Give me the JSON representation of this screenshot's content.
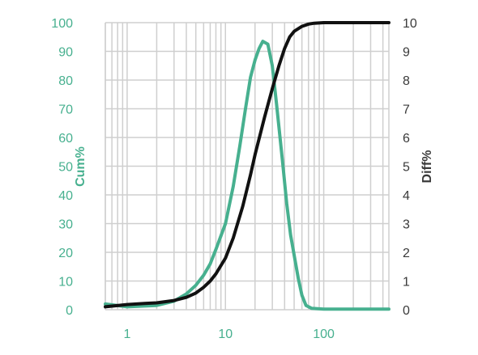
{
  "chart_data": {
    "type": "line",
    "title": "",
    "x_axis": {
      "label": "",
      "scale": "log",
      "range": [
        0.6,
        460
      ],
      "tick_values": [
        1,
        10,
        100
      ],
      "tick_labels": [
        "1",
        "10",
        "100"
      ]
    },
    "y_left": {
      "label": "Cum%",
      "range": [
        0,
        100
      ],
      "tick_values": [
        0,
        10,
        20,
        30,
        40,
        50,
        60,
        70,
        80,
        90,
        100
      ],
      "tick_labels": [
        "0",
        "10",
        "20",
        "30",
        "40",
        "50",
        "60",
        "70",
        "80",
        "90",
        "100"
      ],
      "color": "#47b08f"
    },
    "y_right": {
      "label": "Diff%",
      "range": [
        0,
        10
      ],
      "tick_values": [
        0,
        1,
        2,
        3,
        4,
        5,
        6,
        7,
        8,
        9,
        10
      ],
      "tick_labels": [
        "0",
        "1",
        "2",
        "3",
        "4",
        "5",
        "6",
        "7",
        "8",
        "9",
        "10"
      ],
      "color": "#3a3a3a"
    },
    "grid": true,
    "legend": "none",
    "series": [
      {
        "axis": "right",
        "color": "#47b08f",
        "points": [
          [
            0.6,
            0.2
          ],
          [
            1.0,
            0.1
          ],
          [
            2.0,
            0.15
          ],
          [
            3.0,
            0.3
          ],
          [
            4.0,
            0.55
          ],
          [
            5.0,
            0.85
          ],
          [
            6.0,
            1.2
          ],
          [
            7.0,
            1.6
          ],
          [
            8.0,
            2.1
          ],
          [
            10.0,
            3.0
          ],
          [
            12.0,
            4.3
          ],
          [
            14.0,
            5.7
          ],
          [
            16.0,
            7.0
          ],
          [
            18.0,
            8.1
          ],
          [
            20.0,
            8.7
          ],
          [
            22.0,
            9.1
          ],
          [
            24.0,
            9.35
          ],
          [
            27.0,
            9.25
          ],
          [
            30.0,
            8.5
          ],
          [
            33.0,
            7.2
          ],
          [
            38.0,
            5.2
          ],
          [
            42.0,
            3.7
          ],
          [
            46.0,
            2.6
          ],
          [
            50.0,
            1.9
          ],
          [
            55.0,
            1.1
          ],
          [
            60.0,
            0.5
          ],
          [
            66.0,
            0.15
          ],
          [
            75.0,
            0.05
          ],
          [
            100.0,
            0.02
          ],
          [
            200.0,
            0.02
          ],
          [
            460.0,
            0.02
          ]
        ]
      },
      {
        "axis": "left",
        "color": "#111111",
        "points": [
          [
            0.6,
            1
          ],
          [
            1.0,
            1.8
          ],
          [
            1.5,
            2.2
          ],
          [
            2.0,
            2.4
          ],
          [
            3.0,
            3.2
          ],
          [
            4.0,
            4.3
          ],
          [
            5.0,
            5.8
          ],
          [
            6.0,
            7.8
          ],
          [
            7.0,
            10
          ],
          [
            8.0,
            12.5
          ],
          [
            10.0,
            18
          ],
          [
            12.0,
            25
          ],
          [
            15.0,
            36
          ],
          [
            18.0,
            47
          ],
          [
            20.0,
            54
          ],
          [
            25.0,
            67
          ],
          [
            30.0,
            77
          ],
          [
            35.0,
            85
          ],
          [
            40.0,
            91
          ],
          [
            45.0,
            95
          ],
          [
            50.0,
            97
          ],
          [
            60.0,
            98.7
          ],
          [
            70.0,
            99.5
          ],
          [
            80.0,
            99.8
          ],
          [
            100.0,
            100
          ],
          [
            200.0,
            100
          ],
          [
            460.0,
            100
          ]
        ]
      }
    ]
  }
}
